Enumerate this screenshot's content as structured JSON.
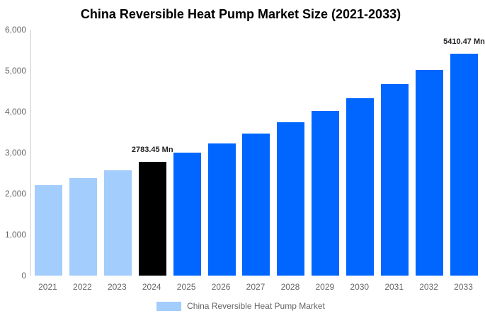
{
  "chart": {
    "title": "China Reversible Heat Pump Market Size (2021-2033)",
    "legend": {
      "label": "China Reversible Heat Pump Market",
      "swatch_color": "#A3CDFC"
    }
  },
  "chart_data": {
    "type": "bar",
    "title": "China Reversible Heat Pump Market Size (2021-2033)",
    "categories": [
      "2021",
      "2022",
      "2023",
      "2024",
      "2025",
      "2026",
      "2027",
      "2028",
      "2029",
      "2030",
      "2031",
      "2032",
      "2033"
    ],
    "values": [
      2210,
      2385,
      2575,
      2783.45,
      2995,
      3225,
      3470,
      3740,
      4025,
      4335,
      4670,
      5025,
      5410.47
    ],
    "unit": "Mn",
    "xlabel": "",
    "ylabel": "",
    "ylim": [
      0,
      6000
    ],
    "grid": false,
    "legend_position": "bottom",
    "y_ticks": [
      {
        "value": 0,
        "label": "0"
      },
      {
        "value": 1000,
        "label": "1,000"
      },
      {
        "value": 2000,
        "label": "2,000"
      },
      {
        "value": 3000,
        "label": "3,000"
      },
      {
        "value": 4000,
        "label": "4,000"
      },
      {
        "value": 5000,
        "label": "5,000"
      },
      {
        "value": 6000,
        "label": "6,000"
      }
    ],
    "data_labels": [
      {
        "category": "2024",
        "text": "2783.45 Mn"
      },
      {
        "category": "2033",
        "text": "5410.47 Mn"
      }
    ],
    "bar_color_groups": [
      "historical",
      "historical",
      "historical",
      "base",
      "forecast",
      "forecast",
      "forecast",
      "forecast",
      "forecast",
      "forecast",
      "forecast",
      "forecast",
      "forecast"
    ],
    "colors": {
      "historical": "#A3CDFC",
      "base": "#000000",
      "forecast": "#0066FF"
    },
    "axis_label_color": "#666666",
    "axis_line_color": "#CCCCCC"
  }
}
